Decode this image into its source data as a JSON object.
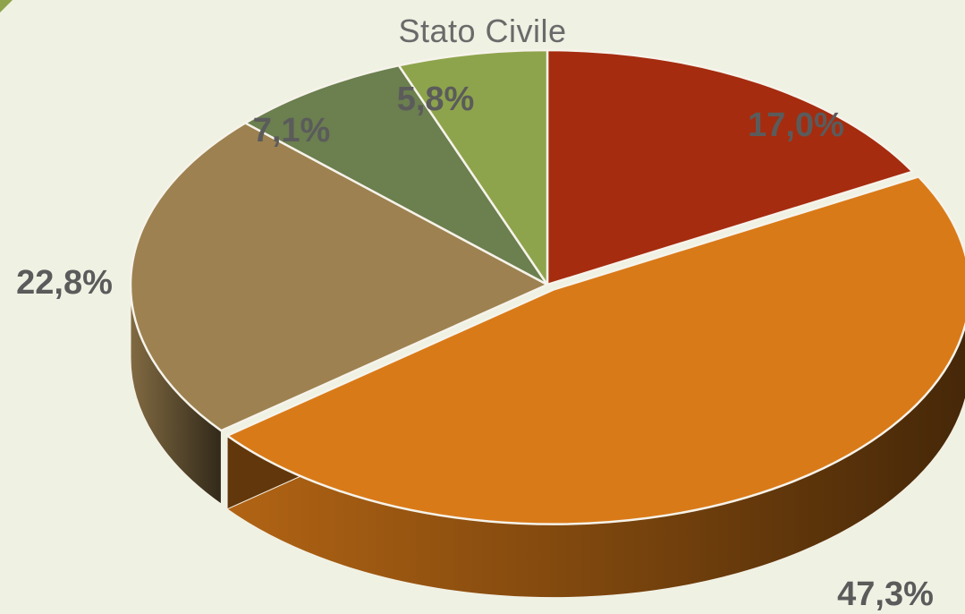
{
  "chart_data": {
    "type": "pie",
    "title": "Stato Civile",
    "three_d": true,
    "slices": [
      {
        "label": "17,0%",
        "value": 17.0,
        "color": "#a52c0f"
      },
      {
        "label": "47,3%",
        "value": 47.3,
        "color": "#d97a18"
      },
      {
        "label": "22,8%",
        "value": 22.8,
        "color": "#9d8150"
      },
      {
        "label": "7,1%",
        "value": 7.1,
        "color": "#6b7f4f"
      },
      {
        "label": "5,8%",
        "value": 5.8,
        "color": "#8ea44c"
      }
    ]
  }
}
